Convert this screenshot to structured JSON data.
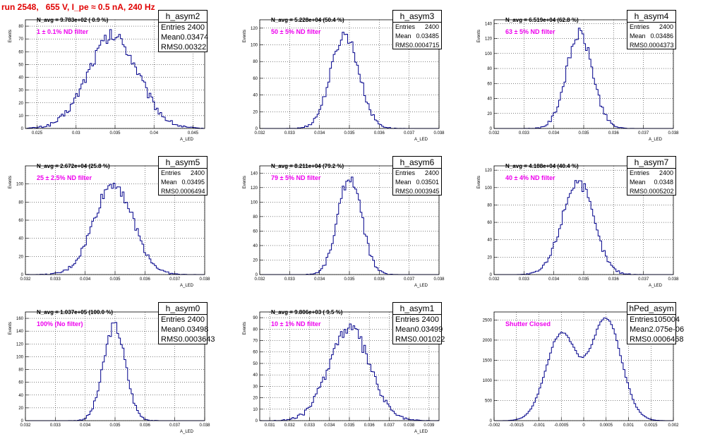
{
  "title": "run 2548,   655 V, I_pe ≈ 0.5 nA, 240 Hz",
  "chart_data": [
    {
      "type": "histogram",
      "name": "h_asym2",
      "navg": "N_avg = 9.783e+02 ( 0.9 %)",
      "filter": "1 ± 0.1% ND filter",
      "stats": {
        "entries": "2400",
        "mean": "0.03474",
        "rms": "0.00322"
      },
      "ylabel": "Events",
      "xlabel": "A_LED",
      "xlim": [
        0.0235,
        0.0465
      ],
      "ylim": [
        0,
        85
      ],
      "xticks": [
        "0.025",
        "0.03",
        "0.035",
        "0.04",
        "0.045"
      ],
      "xtick_values": [
        0.025,
        0.03,
        0.035,
        0.04,
        0.045
      ],
      "yticks": [
        0,
        10,
        20,
        30,
        40,
        50,
        60,
        70,
        80
      ],
      "peak": 80,
      "dist": {
        "kind": "gauss",
        "mu": 0.03474,
        "sigma": 0.00322
      }
    },
    {
      "type": "histogram",
      "name": "h_asym3",
      "navg": "N_avg = 5.228e+04 (50.4 %)",
      "filter": "50 ± 5% ND filter",
      "stats": {
        "entries": "2400",
        "mean": "0.03485",
        "rms": "0.0004715"
      },
      "ylabel": "Events",
      "xlabel": "A_LED",
      "xlim": [
        0.032,
        0.038
      ],
      "ylim": [
        0,
        130
      ],
      "xticks": [
        "0.032",
        "0.033",
        "0.034",
        "0.035",
        "0.036",
        "0.037",
        "0.038"
      ],
      "xtick_values": [
        0.032,
        0.033,
        0.034,
        0.035,
        0.036,
        0.037,
        0.038
      ],
      "yticks": [
        0,
        20,
        40,
        60,
        80,
        100,
        120
      ],
      "peak": 125,
      "dist": {
        "kind": "gauss",
        "mu": 0.03485,
        "sigma": 0.0004715
      }
    },
    {
      "type": "histogram",
      "name": "h_asym4",
      "navg": "N_avg = 6.519e+04 (62.8 %)",
      "filter": "63 ± 5% ND filter",
      "stats": {
        "entries": "2400",
        "mean": "0.03486",
        "rms": "0.0004373"
      },
      "ylabel": "Events",
      "xlabel": "A_LED",
      "xlim": [
        0.032,
        0.038
      ],
      "ylim": [
        0,
        145
      ],
      "xticks": [
        "0.032",
        "0.033",
        "0.034",
        "0.035",
        "0.036",
        "0.037",
        "0.038"
      ],
      "xtick_values": [
        0.032,
        0.033,
        0.034,
        0.035,
        0.036,
        0.037,
        0.038
      ],
      "yticks": [
        0,
        20,
        40,
        60,
        80,
        100,
        120,
        140
      ],
      "peak": 140,
      "dist": {
        "kind": "gauss",
        "mu": 0.03486,
        "sigma": 0.0004373
      }
    },
    {
      "type": "histogram",
      "name": "h_asym5",
      "navg": "N_avg = 2.672e+04 (25.8 %)",
      "filter": "25 ± 2.5% ND filter",
      "stats": {
        "entries": "2400",
        "mean": "0.03495",
        "rms": "0.0006494"
      },
      "ylabel": "Events",
      "xlabel": "A_LED",
      "xlim": [
        0.032,
        0.038
      ],
      "ylim": [
        0,
        120
      ],
      "xticks": [
        "0.032",
        "0.033",
        "0.034",
        "0.035",
        "0.036",
        "0.037",
        "0.038"
      ],
      "xtick_values": [
        0.032,
        0.033,
        0.034,
        0.035,
        0.036,
        0.037,
        0.038
      ],
      "yticks": [
        0,
        20,
        40,
        60,
        80,
        100
      ],
      "peak": 112,
      "dist": {
        "kind": "gauss",
        "mu": 0.03495,
        "sigma": 0.0006494
      }
    },
    {
      "type": "histogram",
      "name": "h_asym6",
      "navg": "N_avg = 8.211e+04 (79.2 %)",
      "filter": "79 ± 5% ND filter",
      "stats": {
        "entries": "2400",
        "mean": "0.03501",
        "rms": "0.0003945"
      },
      "ylabel": "Events",
      "xlabel": "A_LED",
      "xlim": [
        0.032,
        0.038
      ],
      "ylim": [
        0,
        150
      ],
      "xticks": [
        "0.032",
        "0.033",
        "0.034",
        "0.035",
        "0.036",
        "0.037",
        "0.038"
      ],
      "xtick_values": [
        0.032,
        0.033,
        0.034,
        0.035,
        0.036,
        0.037,
        0.038
      ],
      "yticks": [
        0,
        20,
        40,
        60,
        80,
        100,
        120,
        140
      ],
      "peak": 150,
      "dist": {
        "kind": "gauss",
        "mu": 0.03501,
        "sigma": 0.0003945
      }
    },
    {
      "type": "histogram",
      "name": "h_asym7",
      "navg": "N_avg = 4.188e+04 (40.4 %)",
      "filter": "40 ± 4% ND filter",
      "stats": {
        "entries": "2400",
        "mean": "0.0348",
        "rms": "0.0005202"
      },
      "ylabel": "Events",
      "xlabel": "A_LED",
      "xlim": [
        0.032,
        0.038
      ],
      "ylim": [
        0,
        125
      ],
      "xticks": [
        "0.032",
        "0.033",
        "0.034",
        "0.035",
        "0.036",
        "0.037",
        "0.038"
      ],
      "xtick_values": [
        0.032,
        0.033,
        0.034,
        0.035,
        0.036,
        0.037,
        0.038
      ],
      "yticks": [
        0,
        20,
        40,
        60,
        80,
        100,
        120
      ],
      "peak": 120,
      "dist": {
        "kind": "gauss",
        "mu": 0.0348,
        "sigma": 0.0005202
      }
    },
    {
      "type": "histogram",
      "name": "h_asym0",
      "navg": "N_avg = 1.037e+05 (100.0 %)",
      "filter": "100% (No filter)",
      "stats": {
        "entries": "2400",
        "mean": "0.03498",
        "rms": "0.0003643"
      },
      "ylabel": "Events",
      "xlabel": "A_LED",
      "xlim": [
        0.032,
        0.038
      ],
      "ylim": [
        0,
        170
      ],
      "xticks": [
        "0.032",
        "0.033",
        "0.034",
        "0.035",
        "0.036",
        "0.037",
        "0.038"
      ],
      "xtick_values": [
        0.032,
        0.033,
        0.034,
        0.035,
        0.036,
        0.037,
        0.038
      ],
      "yticks": [
        0,
        20,
        40,
        60,
        80,
        100,
        120,
        140,
        160
      ],
      "peak": 165,
      "dist": {
        "kind": "gauss",
        "mu": 0.03498,
        "sigma": 0.0003643
      }
    },
    {
      "type": "histogram",
      "name": "h_asym1",
      "navg": "N_avg = 9.806e+03 ( 9.5 %)",
      "filter": "10 ± 1% ND filter",
      "stats": {
        "entries": "2400",
        "mean": "0.03499",
        "rms": "0.001022"
      },
      "ylabel": "Events",
      "xlabel": "A_LED",
      "xlim": [
        0.0305,
        0.0395
      ],
      "ylim": [
        0,
        95
      ],
      "xticks": [
        "0.031",
        "0.032",
        "0.033",
        "0.034",
        "0.035",
        "0.036",
        "0.037",
        "0.038",
        "0.039"
      ],
      "xtick_values": [
        0.031,
        0.032,
        0.033,
        0.034,
        0.035,
        0.036,
        0.037,
        0.038,
        0.039
      ],
      "yticks": [
        0,
        10,
        20,
        30,
        40,
        50,
        60,
        70,
        80,
        90
      ],
      "peak": 90,
      "dist": {
        "kind": "gauss",
        "mu": 0.03499,
        "sigma": 0.001022
      }
    },
    {
      "type": "histogram",
      "name": "hPed_asym",
      "navg": "",
      "filter": "Shutter Closed",
      "stats": {
        "entries": "105004",
        "mean": "2.075e-06",
        "rms": "0.0006468"
      },
      "ylabel": "",
      "xlabel": "",
      "xlim": [
        -0.002,
        0.002
      ],
      "ylim": [
        0,
        2700
      ],
      "xticks": [
        "-0.002",
        "-0.0015",
        "-0.001",
        "-0.0005",
        "0",
        "0.0005",
        "0.001",
        "0.0015",
        "0.002"
      ],
      "xtick_values": [
        -0.002,
        -0.0015,
        -0.001,
        -0.0005,
        0,
        0.0005,
        0.001,
        0.0015,
        0.002
      ],
      "yticks": [
        0,
        500,
        1000,
        1500,
        2000,
        2500
      ],
      "peak": 2580,
      "dist": {
        "kind": "double",
        "mu1": -0.0005,
        "mu2": 0.0005,
        "sigma": 0.00034,
        "a1": 2200,
        "a2": 2580
      }
    }
  ],
  "statbox_labels": {
    "entries": "Entries",
    "mean": "Mean",
    "rms": "RMS"
  }
}
